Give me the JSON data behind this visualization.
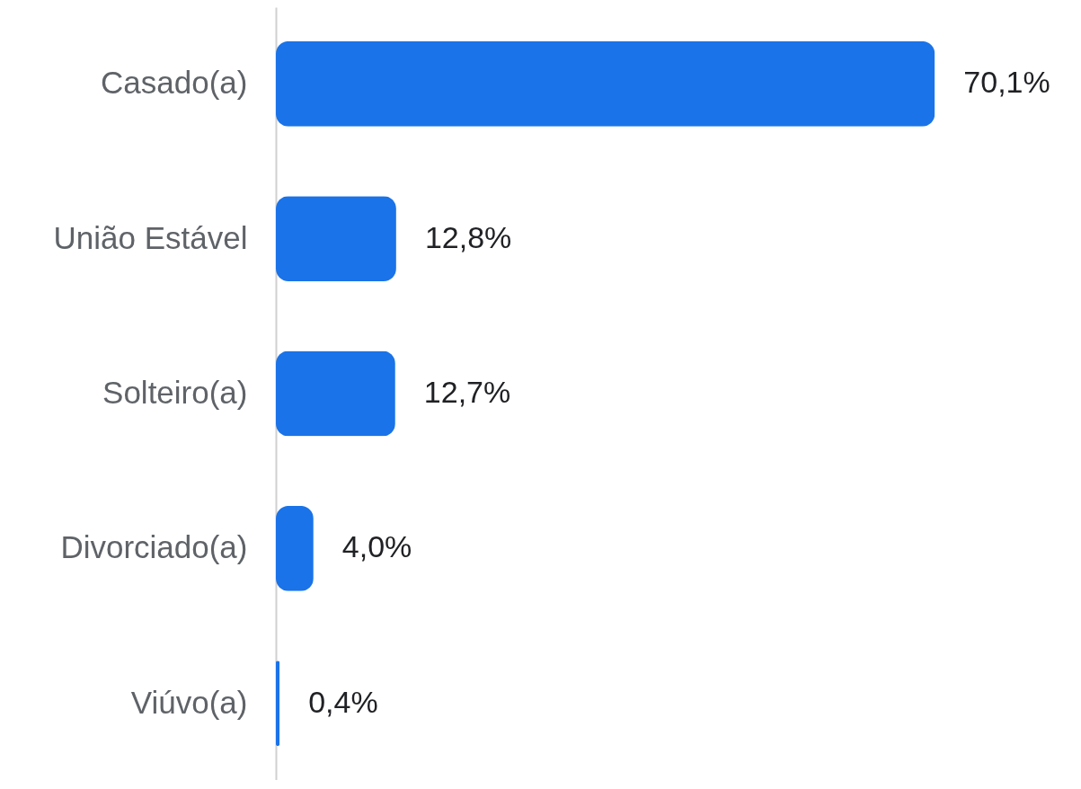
{
  "chart_data": {
    "type": "bar",
    "orientation": "horizontal",
    "categories": [
      "Casado(a)",
      "União Estável",
      "Solteiro(a)",
      "Divorciado(a)",
      "Viúvo(a)"
    ],
    "values": [
      70.1,
      12.8,
      12.7,
      4.0,
      0.4
    ],
    "value_labels": [
      "70,1%",
      "12,8%",
      "12,7%",
      "4,0%",
      "0,4%"
    ],
    "color": "#1a73e8"
  }
}
